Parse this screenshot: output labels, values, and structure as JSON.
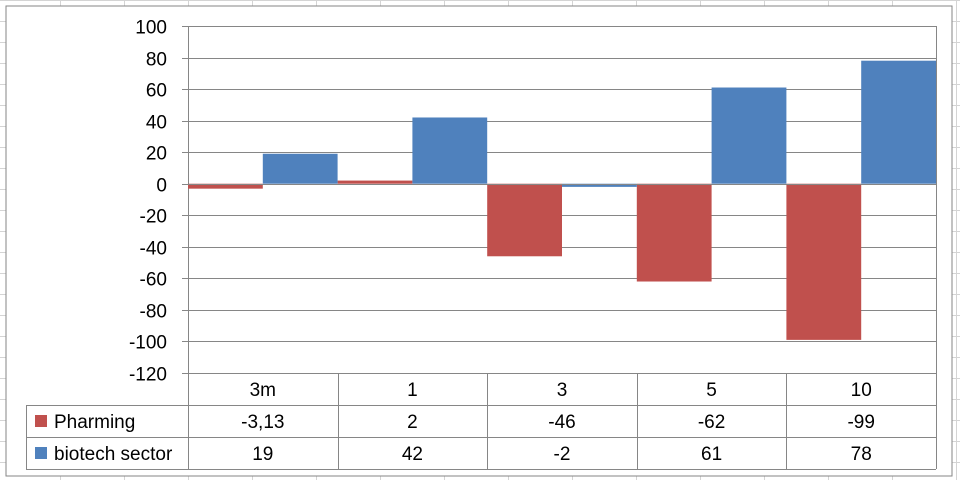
{
  "chart_data": {
    "type": "bar",
    "categories": [
      "3m",
      "1",
      "3",
      "5",
      "10"
    ],
    "series": [
      {
        "name": "Pharming",
        "values": [
          -3.13,
          2,
          -46,
          -62,
          -99
        ],
        "display_values": [
          "-3,13",
          "2",
          "-46",
          "-62",
          "-99"
        ],
        "color": "#C0504D"
      },
      {
        "name": "biotech sector",
        "values": [
          19,
          42,
          -2,
          61,
          78
        ],
        "display_values": [
          "19",
          "42",
          "-2",
          "61",
          "78"
        ],
        "color": "#4F81BD"
      }
    ],
    "ylim": [
      -120,
      100
    ],
    "yticks": [
      100,
      80,
      60,
      40,
      20,
      0,
      -20,
      -40,
      -60,
      -80,
      -100,
      -120
    ],
    "grid": true,
    "legend": "data-table",
    "title": "",
    "xlabel": "",
    "ylabel": ""
  },
  "colors": {
    "gridline": "#868686",
    "sheet_grid": "#d4d4d4",
    "table_border": "#868686"
  }
}
